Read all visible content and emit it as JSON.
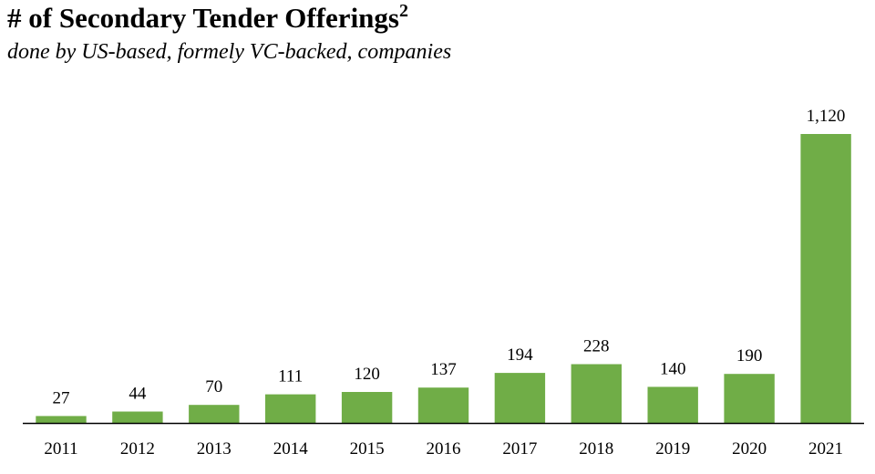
{
  "title_main": "# of Secondary Tender Offerings",
  "title_sup": "2",
  "subtitle": "done by US-based, formely VC-backed, companies",
  "bar_color": "#70ad47",
  "axis_color": "#000000",
  "chart_data": {
    "type": "bar",
    "title": "# of Secondary Tender Offerings",
    "subtitle": "done by US-based, formely VC-backed, companies",
    "categories": [
      "2011",
      "2012",
      "2013",
      "2014",
      "2015",
      "2016",
      "2017",
      "2018",
      "2019",
      "2020",
      "2021"
    ],
    "values": [
      27,
      44,
      70,
      111,
      120,
      137,
      194,
      228,
      140,
      190,
      1120
    ],
    "data_labels": [
      "27",
      "44",
      "70",
      "111",
      "120",
      "137",
      "194",
      "228",
      "140",
      "190",
      "1,120"
    ],
    "xlabel": "",
    "ylabel": "",
    "ylim": [
      0,
      1120
    ],
    "grid": false,
    "legend": "none"
  }
}
